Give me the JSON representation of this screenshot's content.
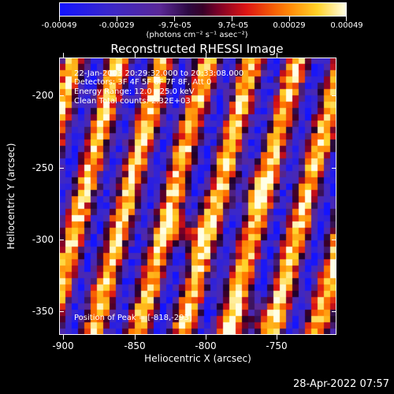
{
  "colorbar": {
    "tick_labels": [
      "-0.00049",
      "-0.00029",
      "-9.7e-05",
      "9.7e-05",
      "0.00029",
      "0.00049"
    ],
    "units": "(photons cm⁻² s⁻¹ asec⁻²)"
  },
  "title": "Reconstructed RHESSI Image",
  "annotations": {
    "time_range": "22-Jan-2003 20:29:32.000 to 20:33:08.000",
    "detectors": "Detectors: 3F 4F 5F 6F 7F 8F, Att 0",
    "energy": "Energy Range: 12.0 - 25.0 keV",
    "method": "Clean     Total counts: 2.32E+03",
    "peak": "Position of Peak = [-818,-293]"
  },
  "axes": {
    "x_ticks": [
      "-900",
      "-850",
      "-800",
      "-750"
    ],
    "y_ticks": [
      "-200",
      "-250",
      "-300",
      "-350"
    ],
    "xlabel": "Heliocentric X (arcsec)",
    "ylabel": "Heliocentric Y (arcsec)"
  },
  "footer": {
    "date": "28-Apr-2022 07:57"
  },
  "image": {
    "colormap": "blue-purple-red-orange-yellow-white"
  }
}
